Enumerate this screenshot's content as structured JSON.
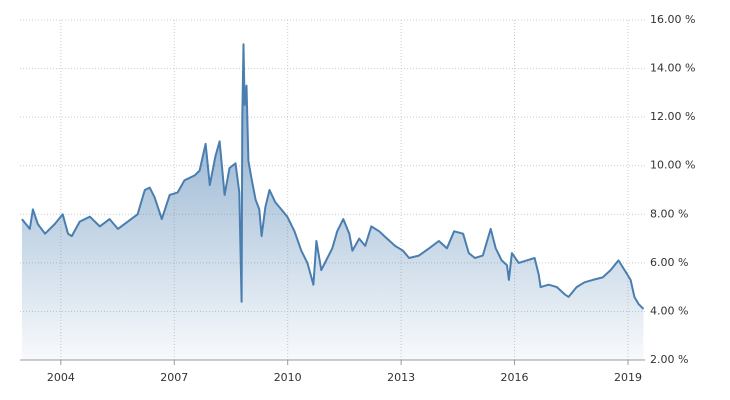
{
  "chart_data": {
    "type": "area",
    "x": [
      2002.97,
      2003.18,
      2003.26,
      2003.39,
      2003.58,
      2003.84,
      2004.05,
      2004.19,
      2004.29,
      2004.5,
      2004.77,
      2005.03,
      2005.29,
      2005.51,
      2005.77,
      2006.03,
      2006.22,
      2006.35,
      2006.48,
      2006.67,
      2006.88,
      2007.09,
      2007.27,
      2007.54,
      2007.67,
      2007.83,
      2007.94,
      2008.09,
      2008.2,
      2008.33,
      2008.46,
      2008.62,
      2008.72,
      2008.78,
      2008.8,
      2008.83,
      2008.86,
      2008.91,
      2008.96,
      2009.04,
      2009.15,
      2009.25,
      2009.31,
      2009.41,
      2009.52,
      2009.67,
      2009.83,
      2009.99,
      2010.18,
      2010.36,
      2010.52,
      2010.68,
      2010.76,
      2010.89,
      2011.05,
      2011.18,
      2011.31,
      2011.47,
      2011.63,
      2011.71,
      2011.89,
      2012.05,
      2012.21,
      2012.42,
      2012.63,
      2012.84,
      2013.05,
      2013.21,
      2013.47,
      2013.74,
      2014.0,
      2014.21,
      2014.4,
      2014.64,
      2014.79,
      2014.95,
      2015.16,
      2015.37,
      2015.5,
      2015.66,
      2015.8,
      2015.85,
      2015.93,
      2016.11,
      2016.32,
      2016.53,
      2016.64,
      2016.69,
      2016.9,
      2017.12,
      2017.33,
      2017.43,
      2017.64,
      2017.85,
      2018.07,
      2018.33,
      2018.54,
      2018.75,
      2018.91,
      2019.07,
      2019.17,
      2019.28,
      2019.41
    ],
    "values": [
      7.8,
      7.4,
      8.2,
      7.6,
      7.2,
      7.6,
      8.0,
      7.2,
      7.1,
      7.7,
      7.9,
      7.5,
      7.8,
      7.4,
      7.7,
      8.0,
      9.0,
      9.1,
      8.7,
      7.8,
      8.8,
      8.9,
      9.4,
      9.6,
      9.8,
      10.9,
      9.2,
      10.4,
      11.0,
      8.8,
      9.9,
      10.1,
      8.9,
      4.4,
      12.0,
      15.0,
      12.5,
      13.3,
      10.2,
      9.5,
      8.6,
      8.2,
      7.1,
      8.3,
      9.0,
      8.5,
      8.2,
      7.9,
      7.3,
      6.5,
      6.0,
      5.1,
      6.9,
      5.7,
      6.2,
      6.6,
      7.3,
      7.8,
      7.2,
      6.5,
      7.0,
      6.7,
      7.5,
      7.3,
      7.0,
      6.7,
      6.5,
      6.2,
      6.3,
      6.6,
      6.9,
      6.6,
      7.3,
      7.2,
      6.4,
      6.2,
      6.3,
      7.4,
      6.6,
      6.1,
      5.9,
      5.3,
      6.4,
      6.0,
      6.1,
      6.2,
      5.5,
      5.0,
      5.1,
      5.0,
      4.7,
      4.6,
      5.0,
      5.2,
      5.3,
      5.4,
      5.7,
      6.1,
      5.7,
      5.3,
      4.6,
      4.3,
      4.1
    ],
    "color": "#4a7eb0",
    "xlim": [
      2002.92,
      2019.45
    ],
    "xticks": [
      2004,
      2007,
      2010,
      2013,
      2016,
      2019
    ],
    "ylim": [
      2,
      16
    ],
    "yticks": [
      {
        "value": 2,
        "label": "2.00 %"
      },
      {
        "value": 4,
        "label": "4.00 %"
      },
      {
        "value": 6,
        "label": "6.00 %"
      },
      {
        "value": 8,
        "label": "8.00 %"
      },
      {
        "value": 10,
        "label": "10.00 %"
      },
      {
        "value": 12,
        "label": "12.00 %"
      },
      {
        "value": 14,
        "label": "14.00 %"
      },
      {
        "value": 16,
        "label": "16.00 %"
      }
    ],
    "grid": true
  }
}
